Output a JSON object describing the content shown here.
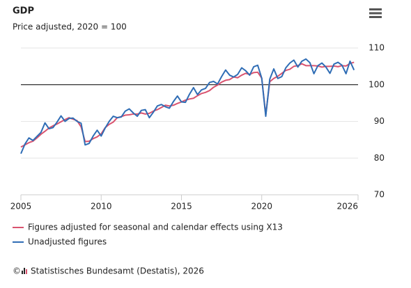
{
  "chart_data": {
    "type": "line",
    "title": "GDP",
    "subtitle": "Price adjusted, 2020 = 100",
    "x": [
      2005,
      2005.25,
      2005.5,
      2005.75,
      2006,
      2006.25,
      2006.5,
      2006.75,
      2007,
      2007.25,
      2007.5,
      2007.75,
      2008,
      2008.25,
      2008.5,
      2008.75,
      2009,
      2009.25,
      2009.5,
      2009.75,
      2010,
      2010.25,
      2010.5,
      2010.75,
      2011,
      2011.25,
      2011.5,
      2011.75,
      2012,
      2012.25,
      2012.5,
      2012.75,
      2013,
      2013.25,
      2013.5,
      2013.75,
      2014,
      2014.25,
      2014.5,
      2014.75,
      2015,
      2015.25,
      2015.5,
      2015.75,
      2016,
      2016.25,
      2016.5,
      2016.75,
      2017,
      2017.25,
      2017.5,
      2017.75,
      2018,
      2018.25,
      2018.5,
      2018.75,
      2019,
      2019.25,
      2019.5,
      2019.75,
      2020,
      2020.25,
      2020.5,
      2020.75,
      2021,
      2021.25,
      2021.5,
      2021.75,
      2022,
      2022.25,
      2022.5,
      2022.75,
      2023,
      2023.25,
      2023.5,
      2023.75,
      2024,
      2024.25,
      2024.5,
      2024.75,
      2025,
      2025.25,
      2025.5,
      2025.75
    ],
    "series": [
      {
        "name": "Figures adjusted for seasonal and calendar effects using X13",
        "color": "#d9536f",
        "values": [
          83.0,
          83.6,
          84.2,
          84.6,
          85.5,
          86.5,
          87.3,
          88.2,
          88.8,
          89.3,
          89.9,
          90.5,
          91.0,
          90.6,
          90.2,
          88.5,
          84.5,
          84.6,
          85.3,
          85.8,
          86.6,
          88.3,
          89.2,
          89.8,
          91.0,
          91.3,
          91.7,
          91.8,
          92.0,
          92.0,
          92.3,
          92.0,
          92.2,
          92.8,
          93.2,
          93.8,
          94.4,
          94.2,
          94.4,
          94.9,
          95.3,
          95.8,
          96.1,
          96.3,
          97.0,
          97.6,
          97.9,
          98.4,
          99.3,
          99.9,
          100.7,
          101.2,
          101.4,
          102.1,
          101.9,
          102.6,
          103.1,
          102.8,
          103.3,
          103.4,
          101.8,
          91.8,
          100.8,
          101.7,
          102.3,
          103.1,
          103.9,
          104.2,
          105.0,
          105.2,
          105.7,
          105.2,
          105.2,
          105.2,
          105.1,
          104.8,
          105.0,
          105.0,
          105.1,
          104.9,
          105.2,
          105.1,
          105.8,
          106.1
        ]
      },
      {
        "name": "Unadjusted figures",
        "color": "#2f6db5",
        "values": [
          81.2,
          83.8,
          85.5,
          84.8,
          85.9,
          87.0,
          89.6,
          88.0,
          88.3,
          89.8,
          91.5,
          90.0,
          90.8,
          90.9,
          90.0,
          89.5,
          83.6,
          84.0,
          86.0,
          87.6,
          86.0,
          88.2,
          90.0,
          91.4,
          91.0,
          91.2,
          92.8,
          93.4,
          92.3,
          91.4,
          93.0,
          93.2,
          91.0,
          92.5,
          94.2,
          94.6,
          94.0,
          93.6,
          95.4,
          96.9,
          95.3,
          95.2,
          97.4,
          99.2,
          97.3,
          98.6,
          99.0,
          100.6,
          100.9,
          100.2,
          102.2,
          104.0,
          102.6,
          102.1,
          102.8,
          104.6,
          103.8,
          102.6,
          104.9,
          105.3,
          101.8,
          91.4,
          101.5,
          104.3,
          101.7,
          102.2,
          104.6,
          105.9,
          106.7,
          104.8,
          106.4,
          107.0,
          106.0,
          103.0,
          105.2,
          105.9,
          104.8,
          103.1,
          105.6,
          106.1,
          105.3,
          103.0,
          106.4,
          104.0
        ]
      }
    ],
    "xlim": [
      2005,
      2026
    ],
    "xticks": [
      2005,
      2010,
      2015,
      2020,
      2026
    ],
    "ylim": [
      70,
      110
    ],
    "yticks": [
      70,
      80,
      90,
      100,
      110
    ],
    "grid": true,
    "plot_line": 100,
    "copyright": "©",
    "credits": "Statistisches Bundesamt (Destatis), 2026"
  }
}
